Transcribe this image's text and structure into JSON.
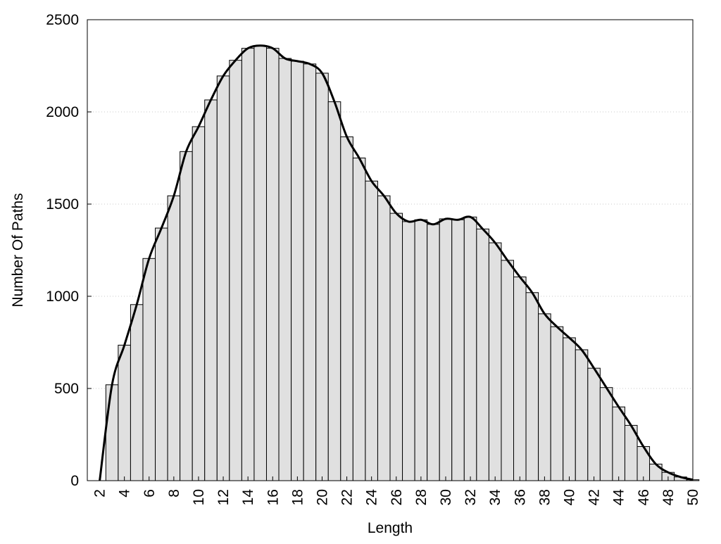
{
  "chart_data": {
    "type": "bar",
    "title": "",
    "xlabel": "Length",
    "ylabel": "Number Of Paths",
    "x_ticks": [
      "2",
      "4",
      "6",
      "8",
      "10",
      "12",
      "14",
      "16",
      "18",
      "20",
      "22",
      "24",
      "26",
      "28",
      "30",
      "32",
      "34",
      "36",
      "38",
      "40",
      "42",
      "44",
      "46",
      "48",
      "50"
    ],
    "y_ticks": [
      "0",
      "500",
      "1000",
      "1500",
      "2000",
      "2500"
    ],
    "ylim": [
      0,
      2500
    ],
    "xlim": [
      1,
      50
    ],
    "grid": "horizontal dotted",
    "categories": [
      "2",
      "3",
      "4",
      "5",
      "6",
      "7",
      "8",
      "9",
      "10",
      "11",
      "12",
      "13",
      "14",
      "15",
      "16",
      "17",
      "18",
      "19",
      "20",
      "21",
      "22",
      "23",
      "24",
      "25",
      "26",
      "27",
      "28",
      "29",
      "30",
      "31",
      "32",
      "33",
      "34",
      "35",
      "36",
      "37",
      "38",
      "39",
      "40",
      "41",
      "42",
      "43",
      "44",
      "45",
      "46",
      "47",
      "48",
      "49",
      "50"
    ],
    "values": [
      0,
      520,
      735,
      955,
      1205,
      1370,
      1545,
      1785,
      1920,
      2065,
      2195,
      2280,
      2345,
      2360,
      2345,
      2290,
      2275,
      2260,
      2210,
      2055,
      1865,
      1750,
      1625,
      1545,
      1450,
      1405,
      1415,
      1390,
      1420,
      1415,
      1430,
      1365,
      1290,
      1195,
      1105,
      1020,
      905,
      835,
      775,
      710,
      610,
      505,
      400,
      300,
      185,
      90,
      45,
      20,
      5
    ],
    "series": [
      {
        "kind": "histogram",
        "values_ref": "values"
      },
      {
        "kind": "smoothed-line",
        "values_ref": "values"
      }
    ],
    "colors": {
      "bar_fill": "#e0e0e0",
      "bar_stroke": "#000000",
      "line": "#000000",
      "grid": "#c8c8c8"
    }
  }
}
